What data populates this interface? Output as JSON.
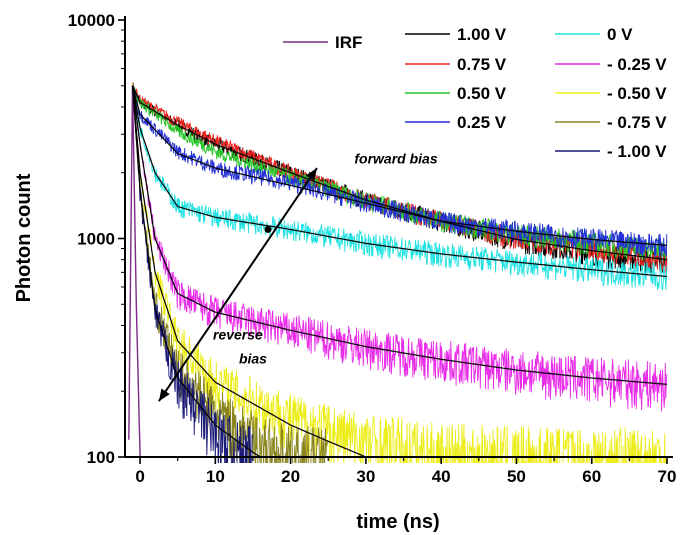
{
  "chart_data": {
    "type": "line",
    "xlabel": "time (ns)",
    "ylabel": "Photon count",
    "xlim": [
      -2,
      70
    ],
    "ylim": [
      100,
      10000
    ],
    "yscale": "log",
    "x_ticks": [
      "0",
      "10",
      "20",
      "30",
      "40",
      "50",
      "60",
      "70"
    ],
    "y_ticks": [
      "100",
      "1000",
      "10000"
    ],
    "x_tick_values": [
      0,
      10,
      20,
      30,
      40,
      50,
      60,
      70
    ],
    "y_tick_values": [
      100,
      1000,
      10000
    ],
    "grid": false,
    "legend_position": "top-right",
    "series": [
      {
        "name": "IRF",
        "color": "#7b2a85",
        "points": [
          [
            -1.5,
            120
          ],
          [
            -1,
            5000
          ],
          [
            -0.5,
            500
          ],
          [
            0,
            100
          ]
        ]
      },
      {
        "name": "1.00 V",
        "color": "#000000",
        "points": [
          [
            -1,
            5000
          ],
          [
            0,
            4200
          ],
          [
            5,
            3300
          ],
          [
            10,
            2700
          ],
          [
            20,
            2000
          ],
          [
            30,
            1500
          ],
          [
            40,
            1200
          ],
          [
            50,
            980
          ],
          [
            60,
            860
          ],
          [
            70,
            770
          ]
        ]
      },
      {
        "name": "0.75 V",
        "color": "#e8221e",
        "points": [
          [
            -1,
            5000
          ],
          [
            0,
            4300
          ],
          [
            5,
            3400
          ],
          [
            10,
            2800
          ],
          [
            20,
            2000
          ],
          [
            30,
            1500
          ],
          [
            40,
            1200
          ],
          [
            50,
            1000
          ],
          [
            60,
            900
          ],
          [
            70,
            800
          ]
        ]
      },
      {
        "name": "0.50 V",
        "color": "#27c427",
        "points": [
          [
            -1,
            5000
          ],
          [
            0,
            4200
          ],
          [
            5,
            3100
          ],
          [
            10,
            2500
          ],
          [
            20,
            1900
          ],
          [
            30,
            1500
          ],
          [
            40,
            1200
          ],
          [
            50,
            1050
          ],
          [
            60,
            950
          ],
          [
            70,
            880
          ]
        ]
      },
      {
        "name": "0.25 V",
        "color": "#2430d4",
        "points": [
          [
            -1,
            5000
          ],
          [
            0,
            3700
          ],
          [
            5,
            2500
          ],
          [
            10,
            2100
          ],
          [
            20,
            1800
          ],
          [
            30,
            1450
          ],
          [
            40,
            1200
          ],
          [
            50,
            1080
          ],
          [
            60,
            990
          ],
          [
            70,
            930
          ]
        ]
      },
      {
        "name": "0 V",
        "color": "#21e2e2",
        "points": [
          [
            -1,
            5000
          ],
          [
            0,
            3200
          ],
          [
            2,
            2000
          ],
          [
            5,
            1400
          ],
          [
            10,
            1250
          ],
          [
            20,
            1100
          ],
          [
            30,
            950
          ],
          [
            40,
            850
          ],
          [
            50,
            780
          ],
          [
            60,
            720
          ],
          [
            70,
            670
          ]
        ]
      },
      {
        "name": "- 0.25 V",
        "color": "#e82ce8",
        "points": [
          [
            -1,
            5000
          ],
          [
            0,
            2700
          ],
          [
            2,
            1000
          ],
          [
            5,
            560
          ],
          [
            10,
            460
          ],
          [
            20,
            380
          ],
          [
            30,
            320
          ],
          [
            40,
            280
          ],
          [
            50,
            250
          ],
          [
            60,
            230
          ],
          [
            70,
            215
          ]
        ]
      },
      {
        "name": "- 0.50 V",
        "color": "#eded1c",
        "points": [
          [
            -1,
            5000
          ],
          [
            0,
            2000
          ],
          [
            2,
            700
          ],
          [
            5,
            340
          ],
          [
            10,
            220
          ],
          [
            20,
            150
          ],
          [
            30,
            118
          ],
          [
            40,
            104
          ],
          [
            50,
            100
          ],
          [
            70,
            100
          ]
        ]
      },
      {
        "name": "- 0.75 V",
        "color": "#8a8520",
        "points": [
          [
            -1,
            5000
          ],
          [
            0,
            1700
          ],
          [
            2,
            500
          ],
          [
            5,
            250
          ],
          [
            10,
            160
          ],
          [
            15,
            120
          ],
          [
            20,
            100
          ],
          [
            25,
            100
          ]
        ]
      },
      {
        "name": "- 1.00 V",
        "color": "#1a1a78",
        "points": [
          [
            -1,
            5000
          ],
          [
            0,
            1600
          ],
          [
            2,
            450
          ],
          [
            5,
            220
          ],
          [
            10,
            130
          ],
          [
            13,
            105
          ],
          [
            15,
            100
          ]
        ]
      }
    ],
    "fits": [
      {
        "color": "#000000",
        "points": [
          [
            -1,
            5000
          ],
          [
            0,
            4200
          ],
          [
            5,
            3300
          ],
          [
            10,
            2700
          ],
          [
            20,
            2000
          ],
          [
            30,
            1500
          ],
          [
            40,
            1200
          ],
          [
            50,
            990
          ],
          [
            60,
            880
          ],
          [
            70,
            800
          ]
        ]
      },
      {
        "color": "#000000",
        "points": [
          [
            -1,
            5000
          ],
          [
            0,
            3700
          ],
          [
            5,
            2450
          ],
          [
            10,
            2100
          ],
          [
            20,
            1750
          ],
          [
            30,
            1450
          ],
          [
            40,
            1200
          ],
          [
            50,
            1080
          ],
          [
            60,
            990
          ],
          [
            70,
            930
          ]
        ]
      },
      {
        "color": "#000000",
        "points": [
          [
            -1,
            5000
          ],
          [
            0,
            3200
          ],
          [
            2,
            2000
          ],
          [
            5,
            1400
          ],
          [
            10,
            1250
          ],
          [
            20,
            1100
          ],
          [
            30,
            950
          ],
          [
            40,
            850
          ],
          [
            50,
            780
          ],
          [
            60,
            720
          ],
          [
            70,
            670
          ]
        ]
      },
      {
        "color": "#000000",
        "points": [
          [
            -1,
            5000
          ],
          [
            0,
            2700
          ],
          [
            2,
            1000
          ],
          [
            5,
            560
          ],
          [
            10,
            460
          ],
          [
            20,
            380
          ],
          [
            30,
            320
          ],
          [
            40,
            280
          ],
          [
            50,
            250
          ],
          [
            60,
            230
          ],
          [
            70,
            215
          ]
        ]
      },
      {
        "color": "#000000",
        "points": [
          [
            -1,
            5000
          ],
          [
            0,
            2000
          ],
          [
            2,
            700
          ],
          [
            5,
            340
          ],
          [
            10,
            220
          ],
          [
            20,
            140
          ],
          [
            25,
            118
          ],
          [
            30,
            100
          ]
        ]
      },
      {
        "color": "#000000",
        "points": [
          [
            -1,
            5000
          ],
          [
            0,
            1650
          ],
          [
            2,
            470
          ],
          [
            5,
            230
          ],
          [
            10,
            140
          ],
          [
            15,
            105
          ],
          [
            16,
            100
          ]
        ]
      }
    ],
    "annotations": [
      {
        "text": "forward bias",
        "x": 34,
        "y": 2200
      },
      {
        "text": "reverse",
        "x": 13,
        "y": 345
      },
      {
        "text": "bias",
        "x": 15,
        "y": 268
      }
    ],
    "arrow": {
      "from": [
        2.5,
        180
      ],
      "to": [
        23.5,
        2100
      ],
      "marker": [
        17,
        1100
      ]
    }
  }
}
